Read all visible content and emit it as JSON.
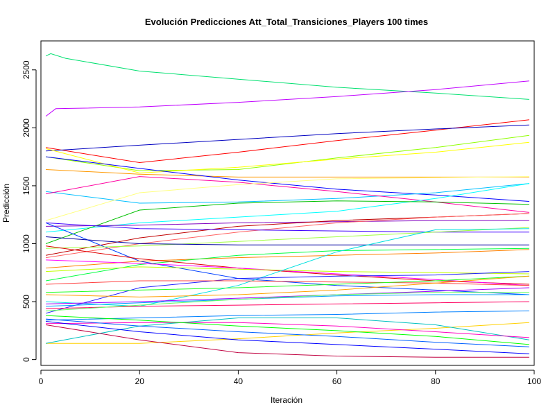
{
  "chart_data": {
    "type": "line",
    "title": "Evolución Predicciones Att_Total_Transiciones_Players 100 times",
    "xlabel": "Iteración",
    "ylabel": "Predicción",
    "xlim": [
      0,
      100
    ],
    "ylim": [
      -50,
      2750
    ],
    "x_ticks": [
      "0",
      "20",
      "40",
      "60",
      "80",
      "100"
    ],
    "y_ticks": [
      "0",
      "500",
      "1000",
      "1500",
      "2000",
      "2500"
    ],
    "x_tick_values": [
      0,
      20,
      40,
      60,
      80,
      100
    ],
    "y_tick_values": [
      0,
      500,
      1000,
      1500,
      2000,
      2500
    ],
    "grid": false,
    "legend": "none",
    "x_range": [
      1,
      99
    ],
    "series": [
      {
        "color": "#00e070",
        "values": [
          [
            1,
            2620
          ],
          [
            2,
            2640
          ],
          [
            5,
            2600
          ],
          [
            20,
            2490
          ],
          [
            40,
            2420
          ],
          [
            60,
            2350
          ],
          [
            80,
            2300
          ],
          [
            99,
            2245
          ]
        ]
      },
      {
        "color": "#c000ff",
        "values": [
          [
            1,
            2100
          ],
          [
            3,
            2165
          ],
          [
            20,
            2180
          ],
          [
            40,
            2220
          ],
          [
            60,
            2270
          ],
          [
            80,
            2330
          ],
          [
            99,
            2405
          ]
        ]
      },
      {
        "color": "#ff0000",
        "values": [
          [
            1,
            1830
          ],
          [
            20,
            1700
          ],
          [
            40,
            1790
          ],
          [
            60,
            1890
          ],
          [
            80,
            1980
          ],
          [
            99,
            2070
          ]
        ]
      },
      {
        "color": "#0000c0",
        "values": [
          [
            1,
            1800
          ],
          [
            20,
            1850
          ],
          [
            40,
            1900
          ],
          [
            60,
            1950
          ],
          [
            80,
            1990
          ],
          [
            99,
            2025
          ]
        ]
      },
      {
        "color": "#90ff00",
        "values": [
          [
            1,
            1750
          ],
          [
            20,
            1630
          ],
          [
            40,
            1640
          ],
          [
            60,
            1740
          ],
          [
            80,
            1830
          ],
          [
            99,
            1935
          ]
        ]
      },
      {
        "color": "#ffff00",
        "values": [
          [
            1,
            1820
          ],
          [
            20,
            1610
          ],
          [
            40,
            1660
          ],
          [
            60,
            1730
          ],
          [
            80,
            1790
          ],
          [
            99,
            1875
          ]
        ]
      },
      {
        "color": "#ff9900",
        "values": [
          [
            1,
            1640
          ],
          [
            20,
            1600
          ],
          [
            40,
            1575
          ],
          [
            60,
            1575
          ],
          [
            80,
            1575
          ],
          [
            99,
            1575
          ]
        ]
      },
      {
        "color": "#0000ff",
        "values": [
          [
            1,
            1750
          ],
          [
            20,
            1650
          ],
          [
            40,
            1550
          ],
          [
            60,
            1470
          ],
          [
            80,
            1420
          ],
          [
            99,
            1365
          ]
        ]
      },
      {
        "color": "#00bfff",
        "values": [
          [
            1,
            1450
          ],
          [
            20,
            1350
          ],
          [
            40,
            1360
          ],
          [
            60,
            1390
          ],
          [
            80,
            1440
          ],
          [
            99,
            1520
          ]
        ]
      },
      {
        "color": "#ff00a0",
        "values": [
          [
            1,
            1430
          ],
          [
            20,
            1580
          ],
          [
            40,
            1530
          ],
          [
            60,
            1450
          ],
          [
            80,
            1360
          ],
          [
            99,
            1270
          ]
        ]
      },
      {
        "color": "#ffff80",
        "values": [
          [
            1,
            1200
          ],
          [
            20,
            1440
          ],
          [
            40,
            1510
          ],
          [
            60,
            1560
          ],
          [
            80,
            1570
          ],
          [
            99,
            1580
          ]
        ]
      },
      {
        "color": "#00ffff",
        "values": [
          [
            1,
            1100
          ],
          [
            20,
            1180
          ],
          [
            40,
            1230
          ],
          [
            60,
            1280
          ],
          [
            80,
            1390
          ],
          [
            99,
            1520
          ]
        ]
      },
      {
        "color": "#8000c0",
        "values": [
          [
            1,
            1150
          ],
          [
            20,
            1160
          ],
          [
            40,
            1180
          ],
          [
            60,
            1190
          ],
          [
            80,
            1200
          ],
          [
            99,
            1200
          ]
        ]
      },
      {
        "color": "#00c000",
        "values": [
          [
            1,
            1000
          ],
          [
            20,
            1290
          ],
          [
            40,
            1350
          ],
          [
            60,
            1370
          ],
          [
            80,
            1360
          ],
          [
            99,
            1340
          ]
        ]
      },
      {
        "color": "#c00000",
        "values": [
          [
            1,
            900
          ],
          [
            20,
            1050
          ],
          [
            40,
            1150
          ],
          [
            60,
            1200
          ],
          [
            80,
            1230
          ],
          [
            99,
            1260
          ]
        ]
      },
      {
        "color": "#0040ff",
        "values": [
          [
            1,
            1180
          ],
          [
            20,
            850
          ],
          [
            40,
            700
          ],
          [
            60,
            640
          ],
          [
            80,
            600
          ],
          [
            99,
            560
          ]
        ]
      },
      {
        "color": "#ff6060",
        "values": [
          [
            1,
            880
          ],
          [
            20,
            1000
          ],
          [
            40,
            1100
          ],
          [
            60,
            1180
          ],
          [
            80,
            1230
          ],
          [
            99,
            1260
          ]
        ]
      },
      {
        "color": "#4000ff",
        "values": [
          [
            1,
            1180
          ],
          [
            20,
            1130
          ],
          [
            40,
            1120
          ],
          [
            60,
            1110
          ],
          [
            80,
            1100
          ],
          [
            99,
            1100
          ]
        ]
      },
      {
        "color": "#a0ff40",
        "values": [
          [
            1,
            960
          ],
          [
            20,
            980
          ],
          [
            40,
            1020
          ],
          [
            60,
            1060
          ],
          [
            80,
            1100
          ],
          [
            99,
            1140
          ]
        ]
      },
      {
        "color": "#ff8000",
        "values": [
          [
            1,
            790
          ],
          [
            20,
            850
          ],
          [
            40,
            880
          ],
          [
            60,
            900
          ],
          [
            80,
            920
          ],
          [
            99,
            950
          ]
        ]
      },
      {
        "color": "#00ff40",
        "values": [
          [
            1,
            680
          ],
          [
            20,
            820
          ],
          [
            40,
            900
          ],
          [
            60,
            940
          ],
          [
            80,
            950
          ],
          [
            99,
            960
          ]
        ]
      },
      {
        "color": "#e00000",
        "values": [
          [
            1,
            980
          ],
          [
            20,
            870
          ],
          [
            40,
            790
          ],
          [
            60,
            730
          ],
          [
            80,
            680
          ],
          [
            99,
            650
          ]
        ]
      },
      {
        "color": "#0000a0",
        "values": [
          [
            1,
            1060
          ],
          [
            20,
            1000
          ],
          [
            40,
            990
          ],
          [
            60,
            990
          ],
          [
            80,
            990
          ],
          [
            99,
            990
          ]
        ]
      },
      {
        "color": "#ff00ff",
        "values": [
          [
            1,
            860
          ],
          [
            20,
            830
          ],
          [
            40,
            790
          ],
          [
            60,
            740
          ],
          [
            80,
            690
          ],
          [
            99,
            640
          ]
        ]
      },
      {
        "color": "#c0ff00",
        "values": [
          [
            1,
            760
          ],
          [
            20,
            800
          ],
          [
            40,
            780
          ],
          [
            60,
            760
          ],
          [
            80,
            750
          ],
          [
            99,
            740
          ]
        ]
      },
      {
        "color": "#00e0e0",
        "values": [
          [
            1,
            500
          ],
          [
            20,
            460
          ],
          [
            40,
            640
          ],
          [
            60,
            930
          ],
          [
            80,
            1120
          ],
          [
            99,
            1130
          ]
        ]
      },
      {
        "color": "#2020ff",
        "values": [
          [
            1,
            400
          ],
          [
            20,
            620
          ],
          [
            40,
            700
          ],
          [
            60,
            720
          ],
          [
            80,
            730
          ],
          [
            99,
            760
          ]
        ]
      },
      {
        "color": "#ff4040",
        "values": [
          [
            1,
            650
          ],
          [
            20,
            680
          ],
          [
            40,
            680
          ],
          [
            60,
            670
          ],
          [
            80,
            660
          ],
          [
            99,
            640
          ]
        ]
      },
      {
        "color": "#20ff20",
        "values": [
          [
            1,
            580
          ],
          [
            20,
            600
          ],
          [
            40,
            620
          ],
          [
            60,
            650
          ],
          [
            80,
            680
          ],
          [
            99,
            720
          ]
        ]
      },
      {
        "color": "#ffa000",
        "values": [
          [
            1,
            560
          ],
          [
            20,
            540
          ],
          [
            40,
            560
          ],
          [
            60,
            600
          ],
          [
            80,
            660
          ],
          [
            99,
            720
          ]
        ]
      },
      {
        "color": "#a000ff",
        "values": [
          [
            1,
            480
          ],
          [
            20,
            500
          ],
          [
            40,
            530
          ],
          [
            60,
            560
          ],
          [
            80,
            590
          ],
          [
            99,
            620
          ]
        ]
      },
      {
        "color": "#00a0ff",
        "values": [
          [
            1,
            460
          ],
          [
            20,
            490
          ],
          [
            40,
            520
          ],
          [
            60,
            550
          ],
          [
            80,
            560
          ],
          [
            99,
            560
          ]
        ]
      },
      {
        "color": "#ff0060",
        "values": [
          [
            1,
            440
          ],
          [
            20,
            460
          ],
          [
            40,
            470
          ],
          [
            60,
            480
          ],
          [
            80,
            490
          ],
          [
            99,
            500
          ]
        ]
      },
      {
        "color": "#60ff60",
        "values": [
          [
            1,
            420
          ],
          [
            20,
            470
          ],
          [
            40,
            520
          ],
          [
            60,
            560
          ],
          [
            80,
            580
          ],
          [
            99,
            580
          ]
        ]
      },
      {
        "color": "#0080ff",
        "values": [
          [
            1,
            340
          ],
          [
            20,
            360
          ],
          [
            40,
            380
          ],
          [
            60,
            390
          ],
          [
            80,
            410
          ],
          [
            99,
            420
          ]
        ]
      },
      {
        "color": "#ffd000",
        "values": [
          [
            1,
            140
          ],
          [
            5,
            140
          ],
          [
            20,
            140
          ],
          [
            40,
            180
          ],
          [
            60,
            230
          ],
          [
            80,
            270
          ],
          [
            99,
            320
          ]
        ]
      },
      {
        "color": "#00c0c0",
        "values": [
          [
            1,
            140
          ],
          [
            20,
            290
          ],
          [
            40,
            360
          ],
          [
            60,
            360
          ],
          [
            80,
            300
          ],
          [
            99,
            170
          ]
        ]
      },
      {
        "color": "#ff00c0",
        "values": [
          [
            1,
            310
          ],
          [
            20,
            320
          ],
          [
            40,
            320
          ],
          [
            60,
            290
          ],
          [
            80,
            240
          ],
          [
            99,
            190
          ]
        ]
      },
      {
        "color": "#0000ff",
        "values": [
          [
            1,
            330
          ],
          [
            20,
            240
          ],
          [
            40,
            170
          ],
          [
            60,
            130
          ],
          [
            80,
            90
          ],
          [
            99,
            50
          ]
        ]
      },
      {
        "color": "#c00040",
        "values": [
          [
            1,
            300
          ],
          [
            20,
            170
          ],
          [
            40,
            60
          ],
          [
            60,
            30
          ],
          [
            80,
            20
          ],
          [
            99,
            20
          ]
        ]
      },
      {
        "color": "#00ff00",
        "values": [
          [
            1,
            380
          ],
          [
            20,
            340
          ],
          [
            40,
            290
          ],
          [
            60,
            250
          ],
          [
            80,
            200
          ],
          [
            99,
            130
          ]
        ]
      },
      {
        "color": "#0060ff",
        "values": [
          [
            1,
            350
          ],
          [
            20,
            290
          ],
          [
            40,
            240
          ],
          [
            60,
            200
          ],
          [
            80,
            150
          ],
          [
            99,
            110
          ]
        ]
      }
    ]
  }
}
